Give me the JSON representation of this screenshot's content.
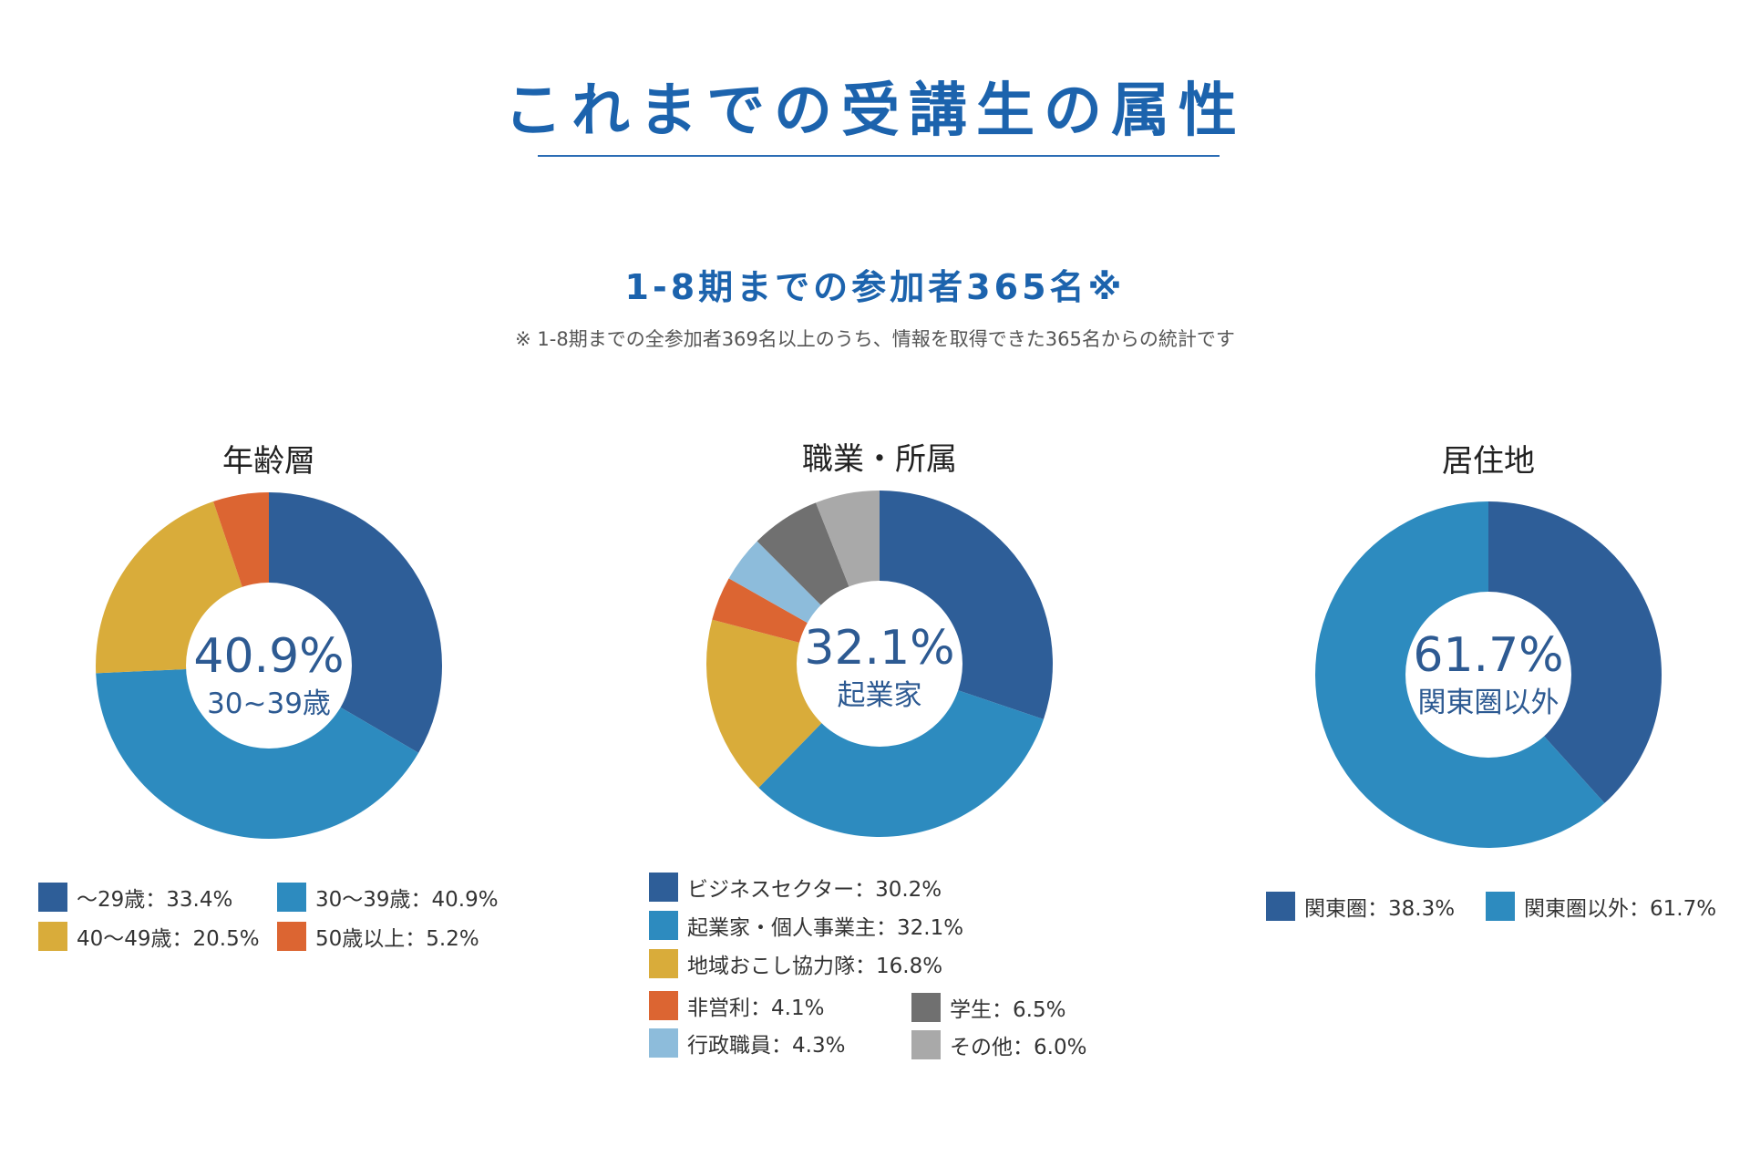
{
  "header": {
    "title": "これまでの受講生の属性",
    "subtitle": "1-8期までの参加者365名※",
    "note": "※ 1-8期までの全参加者369名以上のうち、情報を取得できた365名からの統計です"
  },
  "chart_data": [
    {
      "type": "pie",
      "title": "年齢層",
      "center_value": "40.9%",
      "center_label": "30~39歳",
      "slices": [
        {
          "label": "〜29歳：33.4%",
          "value": 33.4,
          "color": "#2e5e98"
        },
        {
          "label": "30〜39歳：40.9%",
          "value": 40.9,
          "color": "#2d8bbf"
        },
        {
          "label": "40〜49歳：20.5%",
          "value": 20.5,
          "color": "#d9ac3a"
        },
        {
          "label": "50歳以上：5.2%",
          "value": 5.2,
          "color": "#dc6532"
        }
      ],
      "legend_placement": "bottom"
    },
    {
      "type": "pie",
      "title": "職業・所属",
      "center_value": "32.1%",
      "center_label": "起業家",
      "slices": [
        {
          "label": "ビジネスセクター：30.2%",
          "value": 30.2,
          "color": "#2e5e98"
        },
        {
          "label": "起業家・個人事業主：32.1%",
          "value": 32.1,
          "color": "#2d8bbf"
        },
        {
          "label": "地域おこし協力隊：16.8%",
          "value": 16.8,
          "color": "#d9ac3a"
        },
        {
          "label": "非営利：4.1%",
          "value": 4.1,
          "color": "#dc6532"
        },
        {
          "label": "行政職員：4.3%",
          "value": 4.3,
          "color": "#8dbcdb"
        },
        {
          "label": "学生：6.5%",
          "value": 6.5,
          "color": "#707070"
        },
        {
          "label": "その他：6.0%",
          "value": 6.0,
          "color": "#a9a9a9"
        }
      ],
      "legend_placement": "bottom"
    },
    {
      "type": "pie",
      "title": "居住地",
      "center_value": "61.7%",
      "center_label": "関東圏以外",
      "slices": [
        {
          "label": "関東圏：38.3%",
          "value": 38.3,
          "color": "#2e5e98"
        },
        {
          "label": "関東圏以外：61.7%",
          "value": 61.7,
          "color": "#2d8bbf"
        }
      ],
      "legend_placement": "bottom"
    }
  ]
}
